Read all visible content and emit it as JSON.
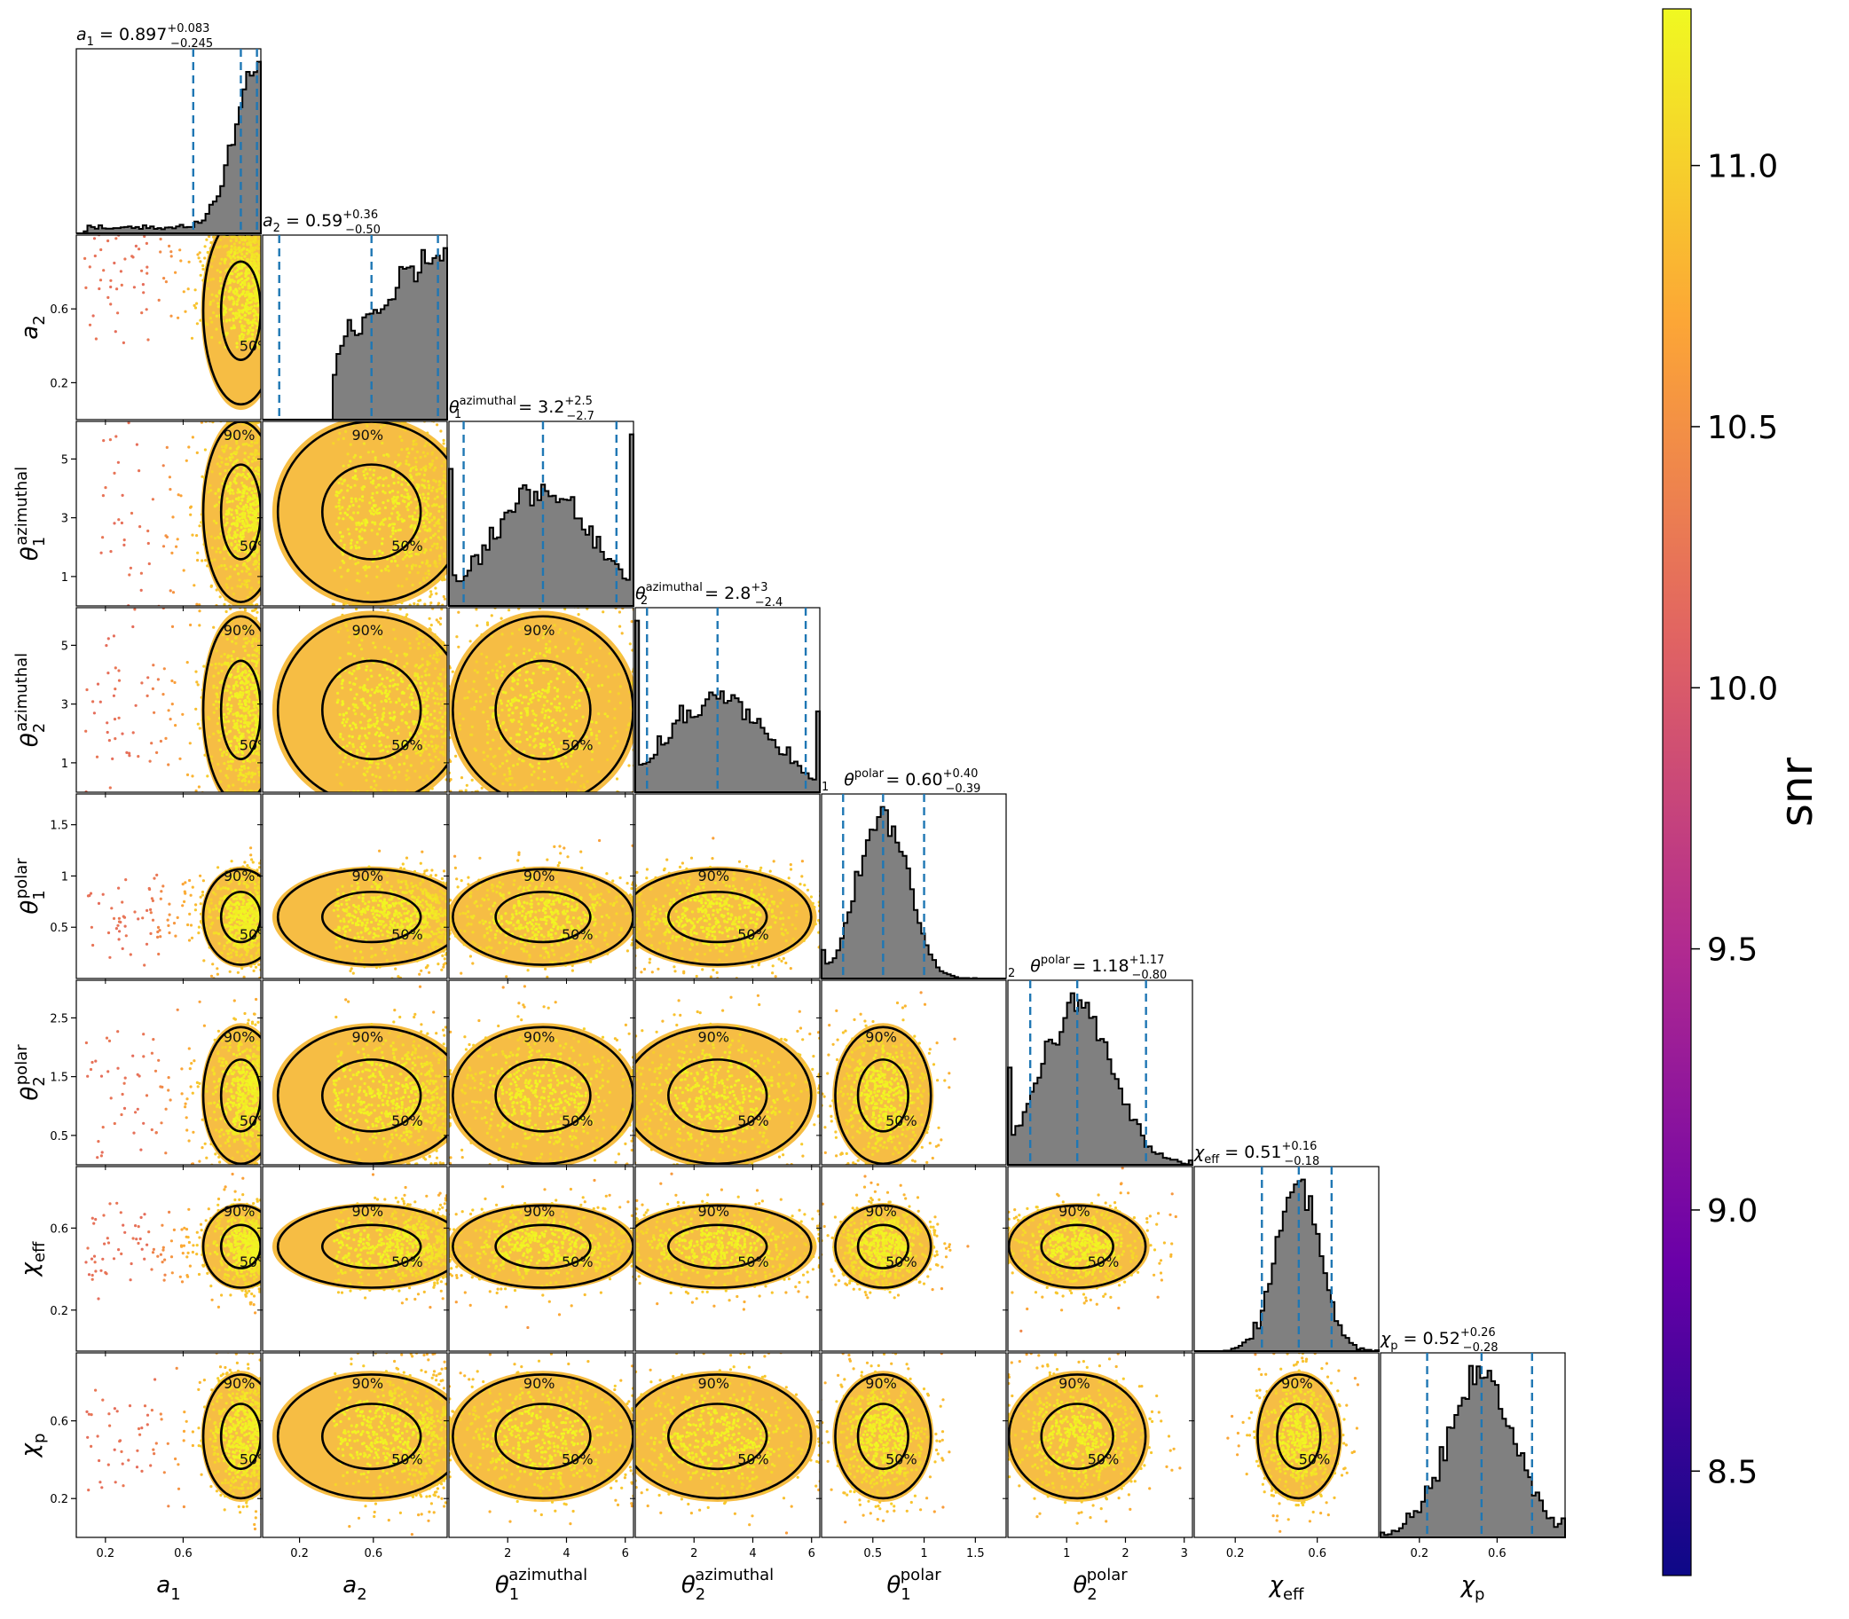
{
  "chart_data": {
    "type": "corner",
    "parameters": [
      {
        "id": "a1",
        "label": "a1",
        "label_sub": "1",
        "range": [
          0.05,
          1.0
        ],
        "ticks": [
          0.2,
          0.6
        ],
        "median": 0.897,
        "lo": 0.652,
        "hi": 0.98,
        "title_name": "a",
        "title_value": "0.897",
        "title_plus": "+0.083",
        "title_minus": "−0.245"
      },
      {
        "id": "a2",
        "label": "a2",
        "label_sub": "2",
        "range": [
          0.0,
          1.0
        ],
        "ticks": [
          0.2,
          0.6
        ],
        "median": 0.59,
        "lo": 0.09,
        "hi": 0.95,
        "title_name": "a",
        "title_value": "0.59",
        "title_plus": "+0.36",
        "title_minus": "−0.50"
      },
      {
        "id": "theta1_az",
        "label": "θ1 azimuthal",
        "label_sub": "1",
        "label_sup": "azimuthal",
        "range": [
          0.0,
          6.28
        ],
        "ticks": [
          1,
          3,
          5
        ],
        "tick_labels_x": [
          2,
          4,
          6
        ],
        "median": 3.2,
        "lo": 0.5,
        "hi": 5.7,
        "title_name": "θ",
        "title_value": "3.2",
        "title_plus": "+2.5",
        "title_minus": "−2.7"
      },
      {
        "id": "theta2_az",
        "label": "θ2 azimuthal",
        "label_sub": "2",
        "label_sup": "azimuthal",
        "range": [
          0.0,
          6.28
        ],
        "ticks": [
          1,
          3,
          5
        ],
        "tick_labels_x": [
          2,
          4,
          6
        ],
        "median": 2.8,
        "lo": 0.4,
        "hi": 5.8,
        "title_name": "θ",
        "title_value": "2.8",
        "title_plus": "+3",
        "title_minus": "−2.4"
      },
      {
        "id": "theta1_pol",
        "label": "θ1 polar",
        "label_sub": "1",
        "label_sup": "polar",
        "range": [
          0.0,
          1.8
        ],
        "ticks": [
          0.5,
          1.0,
          1.5
        ],
        "median": 0.6,
        "lo": 0.21,
        "hi": 1.0,
        "title_name": "θ",
        "title_value": "0.60",
        "title_plus": "+0.40",
        "title_minus": "−0.39"
      },
      {
        "id": "theta2_pol",
        "label": "θ2 polar",
        "label_sub": "2",
        "label_sup": "polar",
        "range": [
          0.0,
          3.14
        ],
        "ticks": [
          0.5,
          1.5,
          2.5
        ],
        "tick_labels_x": [
          1,
          2,
          3
        ],
        "median": 1.18,
        "lo": 0.38,
        "hi": 2.35,
        "title_name": "θ",
        "title_value": "1.18",
        "title_plus": "+1.17",
        "title_minus": "−0.80"
      },
      {
        "id": "chi_eff",
        "label": "χeff",
        "label_sub": "eff",
        "range": [
          0.0,
          0.9
        ],
        "ticks": [
          0.2,
          0.6
        ],
        "median": 0.51,
        "lo": 0.33,
        "hi": 0.67,
        "title_name": "χ",
        "title_value": "0.51",
        "title_plus": "+0.16",
        "title_minus": "−0.18"
      },
      {
        "id": "chi_p",
        "label": "χp",
        "label_sub": "p",
        "range": [
          0.0,
          0.95
        ],
        "ticks": [
          0.2,
          0.6
        ],
        "median": 0.52,
        "lo": 0.24,
        "hi": 0.78,
        "title_name": "χ",
        "title_value": "0.52",
        "title_plus": "+0.26",
        "title_minus": "−0.28"
      }
    ],
    "contour_levels": [
      "50%",
      "90%"
    ],
    "colorbar": {
      "label": "snr",
      "range": [
        8.3,
        11.3
      ],
      "ticks": [
        "8.5",
        "9.0",
        "9.5",
        "10.0",
        "10.5",
        "11.0"
      ],
      "colormap": [
        "#0d0887",
        "#6a00a8",
        "#b12a90",
        "#e16462",
        "#fca636",
        "#f0f921"
      ]
    },
    "colors": {
      "histogram_fill": "#808080",
      "quantile_line": "#1f77b4",
      "contour": "#000000",
      "scatter_dominant": "#f4b330"
    }
  }
}
